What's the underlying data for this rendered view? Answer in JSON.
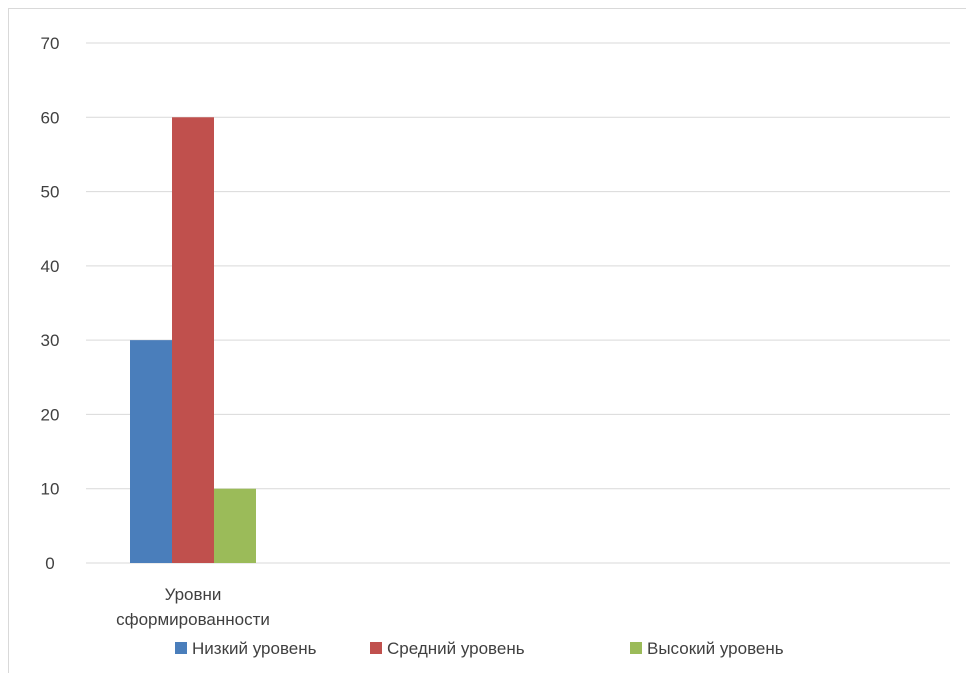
{
  "chart_data": {
    "type": "bar",
    "categories": [
      "Уровни сформированности"
    ],
    "category_lines": [
      [
        "Уровни",
        "сформированности"
      ]
    ],
    "series": [
      {
        "name": "Низкий уровень",
        "values": [
          30
        ],
        "color": "#4a7ebb"
      },
      {
        "name": "Средний уровень",
        "values": [
          60
        ],
        "color": "#c0504d"
      },
      {
        "name": "Высокий уровень",
        "values": [
          10
        ],
        "color": "#9bbb59"
      }
    ],
    "yticks": [
      0,
      10,
      20,
      30,
      40,
      50,
      60,
      70
    ],
    "ylim": [
      0,
      70
    ],
    "grid": true,
    "legend": "bottom"
  }
}
